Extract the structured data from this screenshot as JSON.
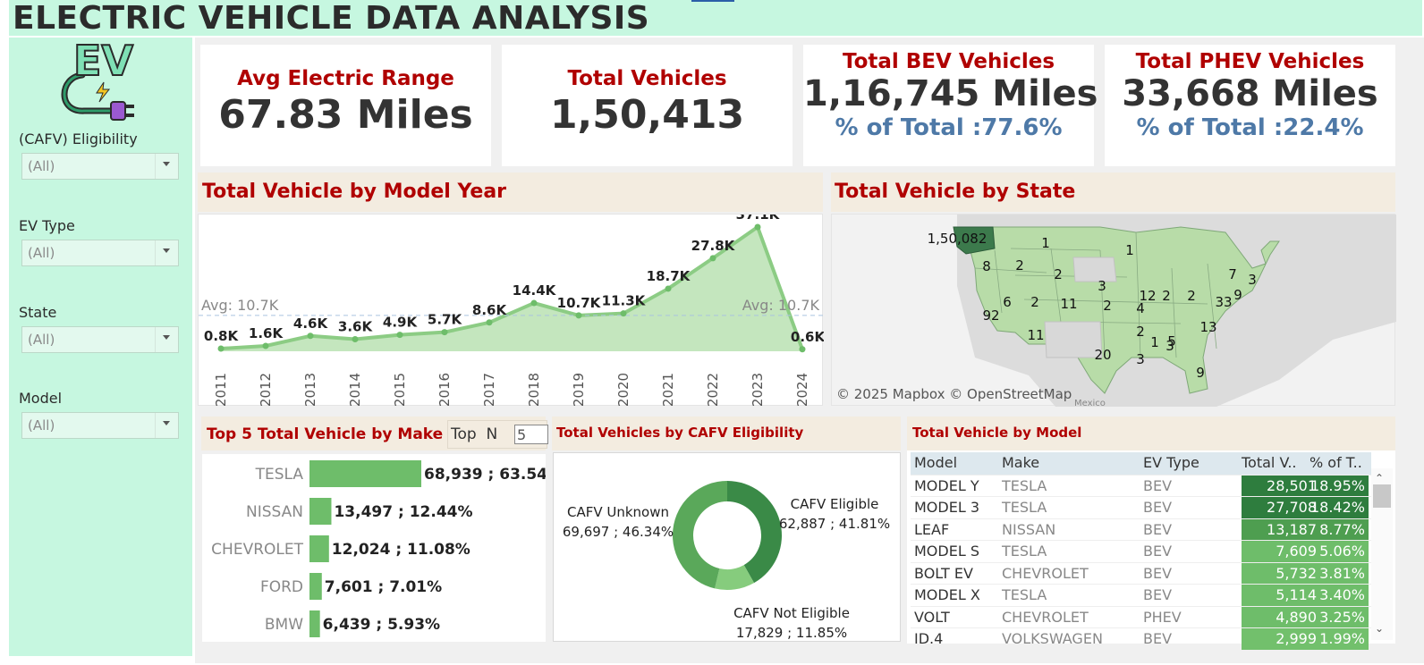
{
  "title": "ELECTRIC VEHICLE DATA ANALYSIS",
  "logo": {
    "text": "EV",
    "icon": "ev-plug-icon"
  },
  "filters": [
    {
      "label": "(CAFV) Eligibility",
      "value": "(All)"
    },
    {
      "label": "EV Type",
      "value": "(All)"
    },
    {
      "label": "State",
      "value": "(All)"
    },
    {
      "label": "Model",
      "value": "(All)"
    }
  ],
  "kpis": {
    "avg_range": {
      "title": "Avg Electric Range",
      "value": "67.83 Miles"
    },
    "total": {
      "title": "Total Vehicles",
      "value": "1,50,413"
    },
    "bev": {
      "title": "Total BEV Vehicles",
      "value": "1,16,745 Miles",
      "pct": "% of Total :77.6%"
    },
    "phev": {
      "title": "Total PHEV Vehicles",
      "value": "33,668 Miles",
      "pct": "% of Total :22.4%"
    }
  },
  "year_chart": {
    "title": "Total Vehicle by Model Year",
    "avg_label": "Avg: 10.7K",
    "chart_data": {
      "type": "area",
      "categories": [
        "2011",
        "2012",
        "2013",
        "2014",
        "2015",
        "2016",
        "2017",
        "2018",
        "2019",
        "2020",
        "2021",
        "2022",
        "2023",
        "2024"
      ],
      "values": [
        800,
        1600,
        4600,
        3600,
        4900,
        5700,
        8600,
        14400,
        10700,
        11300,
        18700,
        27800,
        37100,
        600
      ],
      "labels": [
        "0.8K",
        "1.6K",
        "4.6K",
        "3.6K",
        "4.9K",
        "5.7K",
        "8.6K",
        "14.4K",
        "10.7K",
        "11.3K",
        "18.7K",
        "27.8K",
        "37.1K",
        "0.6K"
      ],
      "reference_line": 10700,
      "color": "#6ebd6a"
    }
  },
  "map": {
    "title": "Total Vehicle by State",
    "attribution": "© 2025 Mapbox © OpenStreetMap",
    "country_label": "Mexico",
    "state_labels": [
      "1,50,082",
      "1",
      "8",
      "2",
      "2",
      "1",
      "6",
      "2",
      "11",
      "3",
      "2",
      "4",
      "12",
      "2",
      "2",
      "7",
      "3",
      "33",
      "9",
      "92",
      "11",
      "20",
      "2",
      "1",
      "3",
      "5",
      "13",
      "3",
      "9"
    ]
  },
  "top_make": {
    "title": "Top 5 Total Vehicle by Make",
    "topn_label": "Top  N",
    "topn_value": "5",
    "chart_data": {
      "type": "bar",
      "categories": [
        "TESLA",
        "NISSAN",
        "CHEVROLET",
        "FORD",
        "BMW"
      ],
      "values": [
        68939,
        13497,
        12024,
        7601,
        6439
      ],
      "labels": [
        "68,939 ; 63.54%",
        "13,497 ; 12.44%",
        "12,024 ; 11.08%",
        "7,601 ; 7.01%",
        "6,439 ; 5.93%"
      ],
      "color": "#6ebd6a"
    }
  },
  "cafv": {
    "title": "Total Vehicles by CAFV Eligibility",
    "chart_data": {
      "type": "pie",
      "categories": [
        "CAFV Eligible",
        "CAFV Not Eligible",
        "CAFV Unknown"
      ],
      "values": [
        62887,
        17829,
        69697
      ],
      "value_labels": [
        "62,887 ; 41.81%",
        "17,829 ; 11.85%",
        "69,697 ; 46.34%"
      ],
      "colors": [
        "#3a8a47",
        "#86cc7d",
        "#5aa85a"
      ]
    }
  },
  "model_table": {
    "title": "Total Vehicle by Model",
    "columns": [
      "Model",
      "Make",
      "EV Type",
      "Total V..",
      "% of T.."
    ],
    "rows": [
      [
        "MODEL Y",
        "TESLA",
        "BEV",
        "28,501",
        "18.95%"
      ],
      [
        "MODEL 3",
        "TESLA",
        "BEV",
        "27,708",
        "18.42%"
      ],
      [
        "LEAF",
        "NISSAN",
        "BEV",
        "13,187",
        "8.77%"
      ],
      [
        "MODEL S",
        "TESLA",
        "BEV",
        "7,609",
        "5.06%"
      ],
      [
        "BOLT EV",
        "CHEVROLET",
        "BEV",
        "5,732",
        "3.81%"
      ],
      [
        "MODEL X",
        "TESLA",
        "BEV",
        "5,114",
        "3.40%"
      ],
      [
        "VOLT",
        "CHEVROLET",
        "PHEV",
        "4,890",
        "3.25%"
      ],
      [
        "ID.4",
        "VOLKSWAGEN",
        "BEV",
        "2,999",
        "1.99%"
      ]
    ],
    "row_colors": [
      "#2e7d3e",
      "#2e7d3e",
      "#4e9e50",
      "#6ebd6a",
      "#6ebd6a",
      "#6ebd6a",
      "#6ebd6a",
      "#72c06c"
    ]
  }
}
